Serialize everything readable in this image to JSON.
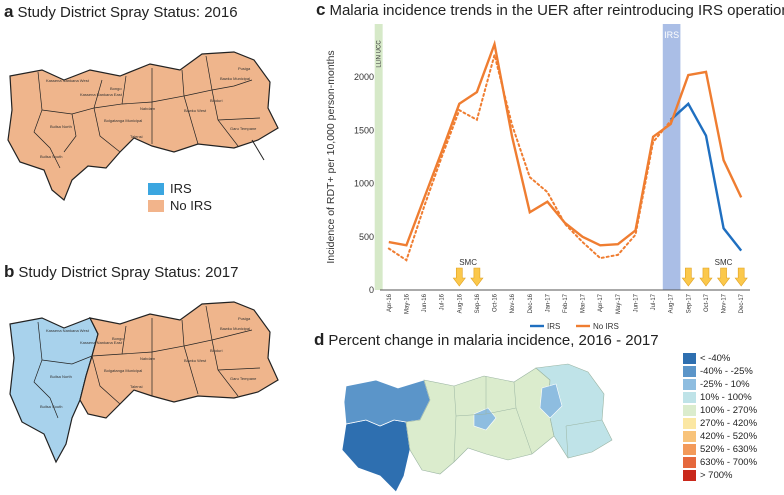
{
  "panel_a": {
    "letter": "a",
    "title": "Study District Spray Status: 2016"
  },
  "panel_b": {
    "letter": "b",
    "title": "Study District Spray Status: 2017"
  },
  "panel_c": {
    "letter": "c",
    "title": "Malaria incidence trends in the UER after reintroducing IRS operations"
  },
  "panel_d": {
    "letter": "d",
    "title": "Percent change in malaria incidence, 2016 - 2017"
  },
  "spray_legend": [
    {
      "label": "IRS",
      "color": "#3ba6e0"
    },
    {
      "label": "No IRS",
      "color": "#f2b48b"
    }
  ],
  "map_colors": {
    "no_irs": "#efb58c",
    "irs": "#a8d2ec",
    "border": "#222222"
  },
  "district_labels": [
    "Kassena Nankana West",
    "Kassena Nankana East",
    "Bongo",
    "Bolgatanga Municipal",
    "Nabdam",
    "Talensi",
    "Builsa North",
    "Builsa South",
    "Bawku West",
    "Binduri",
    "Bawku Municipal",
    "Pusiga",
    "Garu Tempane"
  ],
  "chart_data": {
    "type": "line",
    "title": "Malaria incidence trends in the UER after reintroducing IRS operations",
    "ylabel": "Incidence of RDT+ per 10,000 person-months",
    "xlabel": "",
    "ylim": [
      0,
      2500
    ],
    "yticks": [
      0,
      500,
      1000,
      1500,
      2000
    ],
    "categories": [
      "Apr-16",
      "May-16",
      "Jun-16",
      "Jul-16",
      "Aug-16",
      "Sep-16",
      "Oct-16",
      "Nov-16",
      "Dec-16",
      "Jan-17",
      "Feb-17",
      "Mar-17",
      "Apr-17",
      "May-17",
      "Jun-17",
      "Jul-17",
      "Aug-17",
      "Sep-17",
      "Oct-17",
      "Nov-17",
      "Dec-17"
    ],
    "series": [
      {
        "name": "IRS",
        "color": "#1f6fc0",
        "style": "solid",
        "values": [
          null,
          null,
          null,
          null,
          null,
          null,
          null,
          null,
          null,
          null,
          null,
          null,
          null,
          null,
          null,
          null,
          1600,
          1750,
          1450,
          580,
          370
        ]
      },
      {
        "name": "No IRS",
        "color": "#ef7d31",
        "style": "solid",
        "values": [
          450,
          420,
          860,
          1300,
          1750,
          1860,
          2310,
          1440,
          730,
          830,
          630,
          500,
          420,
          430,
          560,
          1440,
          1560,
          2020,
          2050,
          1220,
          870
        ]
      },
      {
        "name": "",
        "color": "#ef7d31",
        "style": "dotted",
        "values": [
          390,
          280,
          780,
          1250,
          1690,
          1600,
          2210,
          1550,
          1060,
          920,
          620,
          450,
          300,
          330,
          520,
          1390,
          1590,
          null,
          null,
          null,
          null
        ]
      }
    ],
    "bands": [
      {
        "label": "LLIN UCC",
        "from": -0.8,
        "to": -0.35,
        "color": "#d6e9c8"
      },
      {
        "label": "IRS",
        "from": 15.55,
        "to": 16.55,
        "color": "#8da8dd"
      }
    ],
    "smc_label": "SMC",
    "smc_marks_2016": [
      4,
      5
    ],
    "smc_marks_2017": [
      17,
      18,
      19,
      20
    ],
    "grid": false,
    "legend_position": "bottom-center"
  },
  "choropleth_legend": [
    {
      "label": "< -40%",
      "color": "#2e6fb0"
    },
    {
      "label": "-40% -  -25%",
      "color": "#5b95c9"
    },
    {
      "label": "-25% - 10%",
      "color": "#8ebde0"
    },
    {
      "label": "10% - 100%",
      "color": "#bfe3e8"
    },
    {
      "label": "100% - 270%",
      "color": "#dbeccd"
    },
    {
      "label": "270% - 420%",
      "color": "#fbe7a3"
    },
    {
      "label": "420% - 520%",
      "color": "#f8c37a"
    },
    {
      "label": "520% - 630%",
      "color": "#f39a5a"
    },
    {
      "label": "630% - 700%",
      "color": "#e5683d"
    },
    {
      "label": "> 700%",
      "color": "#c9281b"
    }
  ]
}
